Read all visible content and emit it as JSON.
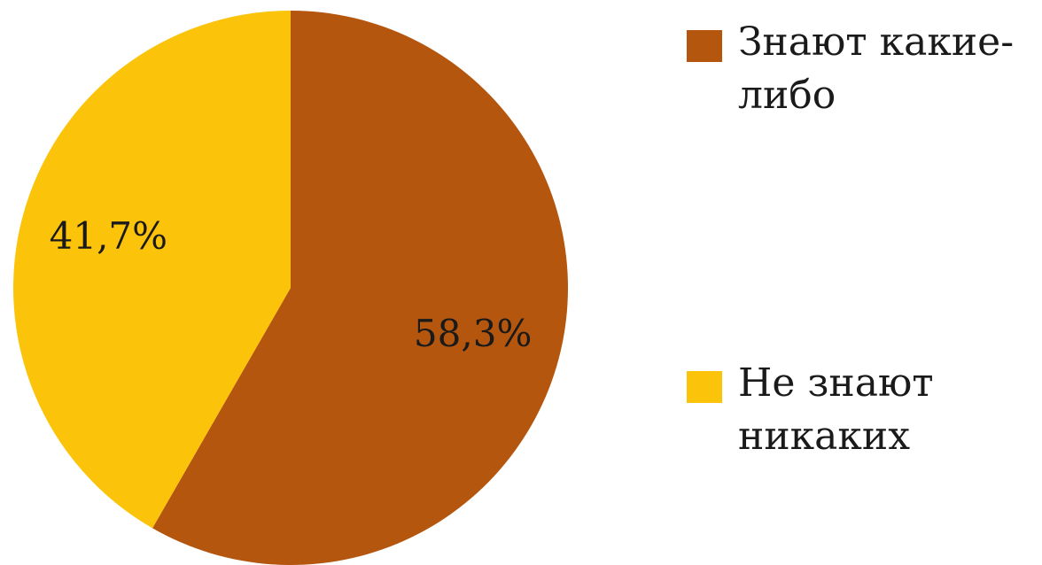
{
  "chart_data": {
    "type": "pie",
    "categories": [
      "Знают какие-либо",
      "Не знают никаких"
    ],
    "values": [
      58.3,
      41.7
    ],
    "value_labels": [
      "58,3%",
      "41,7%"
    ],
    "colors": [
      "#b5560f",
      "#fcc30b"
    ],
    "legend": "right"
  }
}
